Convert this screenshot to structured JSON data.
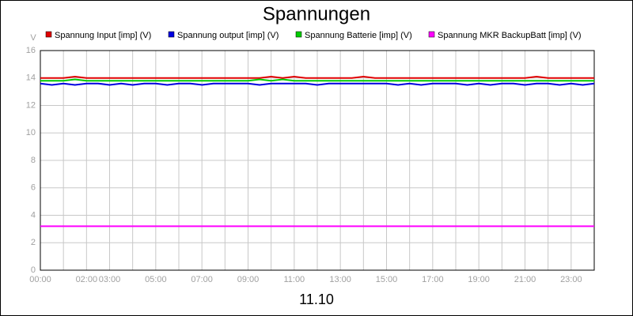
{
  "chart_data": {
    "type": "line",
    "title": "Spannungen",
    "x_label": "11.10",
    "y_label": "V",
    "x": [
      0,
      0.5,
      1,
      1.5,
      2,
      2.5,
      3,
      3.5,
      4,
      4.5,
      5,
      5.5,
      6,
      6.5,
      7,
      7.5,
      8,
      8.5,
      9,
      9.5,
      10,
      10.5,
      11,
      11.5,
      12,
      12.5,
      13,
      13.5,
      14,
      14.5,
      15,
      15.5,
      16,
      16.5,
      17,
      17.5,
      18,
      18.5,
      19,
      19.5,
      20,
      20.5,
      21,
      21.5,
      22,
      22.5,
      23,
      23.5,
      24
    ],
    "series": [
      {
        "name": "Spannung Input [imp] (V)",
        "color": "#e00000",
        "values": [
          14.0,
          14.0,
          14.0,
          14.1,
          14.0,
          14.0,
          14.0,
          14.0,
          14.0,
          14.0,
          14.0,
          14.0,
          14.0,
          14.0,
          14.0,
          14.0,
          14.0,
          14.0,
          14.0,
          14.0,
          14.1,
          14.0,
          14.1,
          14.0,
          14.0,
          14.0,
          14.0,
          14.0,
          14.1,
          14.0,
          14.0,
          14.0,
          14.0,
          14.0,
          14.0,
          14.0,
          14.0,
          14.0,
          14.0,
          14.0,
          14.0,
          14.0,
          14.0,
          14.1,
          14.0,
          14.0,
          14.0,
          14.0,
          14.0
        ]
      },
      {
        "name": "Spannung output [imp] (V)",
        "color": "#0000e0",
        "values": [
          13.6,
          13.5,
          13.6,
          13.5,
          13.6,
          13.6,
          13.5,
          13.6,
          13.5,
          13.6,
          13.6,
          13.5,
          13.6,
          13.6,
          13.5,
          13.6,
          13.6,
          13.6,
          13.6,
          13.5,
          13.6,
          13.6,
          13.6,
          13.6,
          13.5,
          13.6,
          13.6,
          13.6,
          13.6,
          13.6,
          13.6,
          13.5,
          13.6,
          13.5,
          13.6,
          13.6,
          13.6,
          13.5,
          13.6,
          13.5,
          13.6,
          13.6,
          13.5,
          13.6,
          13.6,
          13.5,
          13.6,
          13.5,
          13.6
        ]
      },
      {
        "name": "Spannung Batterie [imp] (V)",
        "color": "#00cc00",
        "values": [
          13.8,
          13.8,
          13.8,
          13.9,
          13.8,
          13.8,
          13.8,
          13.8,
          13.8,
          13.8,
          13.8,
          13.8,
          13.8,
          13.8,
          13.8,
          13.8,
          13.8,
          13.8,
          13.8,
          13.9,
          13.8,
          13.9,
          13.8,
          13.8,
          13.8,
          13.8,
          13.8,
          13.8,
          13.8,
          13.8,
          13.8,
          13.8,
          13.8,
          13.8,
          13.8,
          13.8,
          13.8,
          13.8,
          13.8,
          13.8,
          13.8,
          13.8,
          13.8,
          13.8,
          13.8,
          13.8,
          13.8,
          13.8,
          13.8
        ]
      },
      {
        "name": "Spannung MKR BackupBatt [imp] (V)",
        "color": "#ff00ff",
        "values": [
          3.2,
          3.2,
          3.2,
          3.2,
          3.2,
          3.2,
          3.2,
          3.2,
          3.2,
          3.2,
          3.2,
          3.2,
          3.2,
          3.2,
          3.2,
          3.2,
          3.2,
          3.2,
          3.2,
          3.2,
          3.2,
          3.2,
          3.2,
          3.2,
          3.2,
          3.2,
          3.2,
          3.2,
          3.2,
          3.2,
          3.2,
          3.2,
          3.2,
          3.2,
          3.2,
          3.2,
          3.2,
          3.2,
          3.2,
          3.2,
          3.2,
          3.2,
          3.2,
          3.2,
          3.2,
          3.2,
          3.2,
          3.2,
          3.2
        ]
      }
    ],
    "xlim": [
      0,
      24
    ],
    "xticks": [
      {
        "value": 0,
        "label": "00:00"
      },
      {
        "value": 1,
        "label": null
      },
      {
        "value": 2,
        "label": "02:00"
      },
      {
        "value": 3,
        "label": "03:00"
      },
      {
        "value": 4,
        "label": null
      },
      {
        "value": 5,
        "label": "05:00"
      },
      {
        "value": 6,
        "label": null
      },
      {
        "value": 7,
        "label": "07:00"
      },
      {
        "value": 8,
        "label": null
      },
      {
        "value": 9,
        "label": "09:00"
      },
      {
        "value": 10,
        "label": null
      },
      {
        "value": 11,
        "label": "11:00"
      },
      {
        "value": 12,
        "label": null
      },
      {
        "value": 13,
        "label": "13:00"
      },
      {
        "value": 14,
        "label": null
      },
      {
        "value": 15,
        "label": "15:00"
      },
      {
        "value": 16,
        "label": null
      },
      {
        "value": 17,
        "label": "17:00"
      },
      {
        "value": 18,
        "label": null
      },
      {
        "value": 19,
        "label": "19:00"
      },
      {
        "value": 20,
        "label": null
      },
      {
        "value": 21,
        "label": "21:00"
      },
      {
        "value": 22,
        "label": null
      },
      {
        "value": 23,
        "label": "23:00"
      },
      {
        "value": 24,
        "label": null
      }
    ],
    "ylim": [
      0,
      16
    ],
    "yticks": [
      0,
      2,
      4,
      6,
      8,
      10,
      12,
      14,
      16
    ],
    "grid": true
  }
}
